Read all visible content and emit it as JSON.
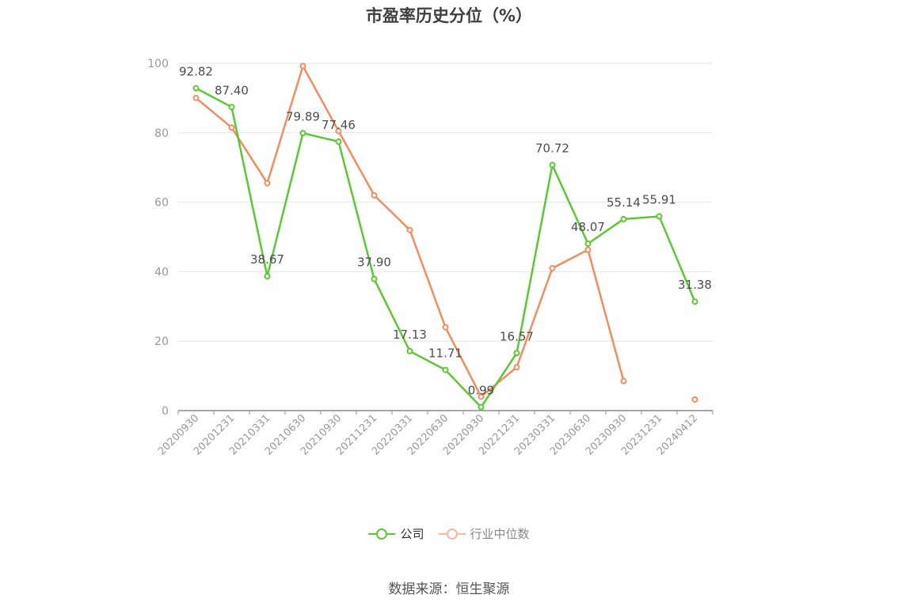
{
  "chart_data": {
    "type": "line",
    "title": "市盈率历史分位（%）",
    "categories": [
      "20200930",
      "20201231",
      "20210331",
      "20210630",
      "20210930",
      "20211231",
      "20220331",
      "20220630",
      "20220930",
      "20221231",
      "20230331",
      "20230630",
      "20230930",
      "20231231",
      "20240412"
    ],
    "series": [
      {
        "name": "公司",
        "color": "#5ac832",
        "values": [
          92.82,
          87.4,
          38.67,
          79.89,
          77.46,
          37.9,
          17.13,
          11.71,
          0.99,
          16.57,
          70.72,
          48.07,
          55.14,
          55.91,
          31.38
        ],
        "labels": [
          "92.82",
          "87.40",
          "38.67",
          "79.89",
          "77.46",
          "37.90",
          "17.13",
          "11.71",
          "0.99",
          "16.57",
          "70.72",
          "48.07",
          "55.14",
          "55.91",
          "31.38"
        ]
      },
      {
        "name": "行业中位数",
        "color": "#f28c5d",
        "legend_color": "#f5b89c",
        "values": [
          90,
          81.5,
          65.5,
          99.2,
          80.5,
          62,
          52,
          24,
          4,
          12.5,
          41,
          46.3,
          8.5,
          null,
          3.2
        ]
      }
    ],
    "ylim": [
      0,
      100
    ],
    "yticks": [
      0,
      20,
      40,
      60,
      80,
      100
    ],
    "grid": true,
    "legend_position": "bottom-center"
  },
  "source": "数据来源：恒生聚源"
}
